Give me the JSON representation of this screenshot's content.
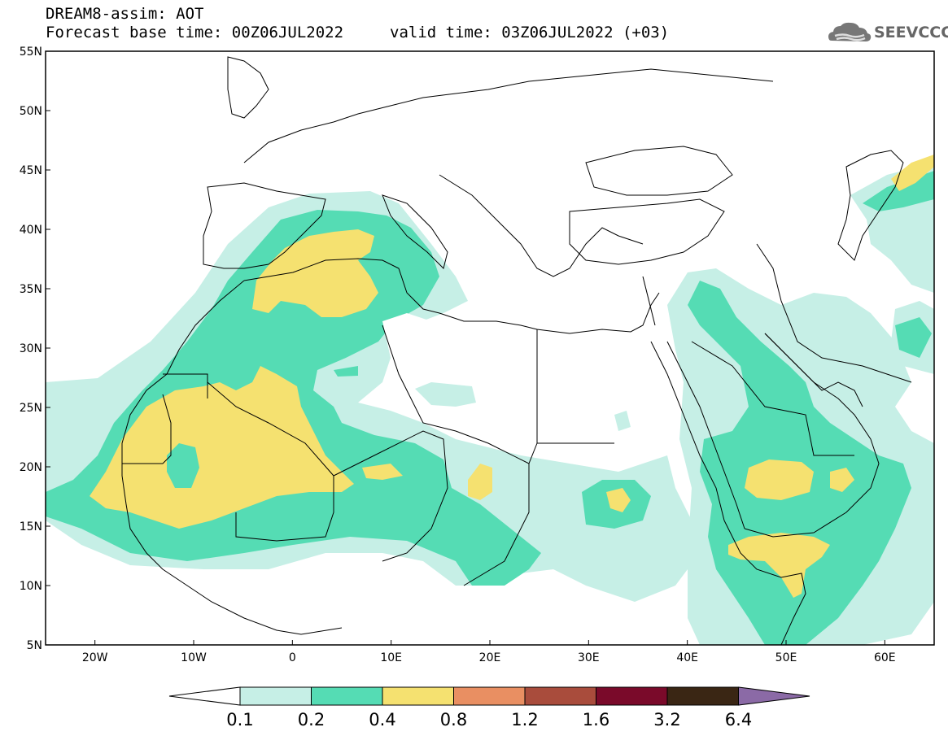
{
  "header": {
    "title": "DREAM8-assim: AOT",
    "base_time": "Forecast base time: 00Z06JUL2022",
    "valid_time": "valid time: 03Z06JUL2022 (+03)",
    "logo_text": "SEEVCCC"
  },
  "map": {
    "lat_labels": [
      "55N",
      "50N",
      "45N",
      "40N",
      "35N",
      "30N",
      "25N",
      "20N",
      "15N",
      "10N",
      "5N"
    ],
    "lon_labels": [
      "20W",
      "10W",
      "0",
      "10E",
      "20E",
      "30E",
      "40E",
      "50E",
      "60E"
    ],
    "lon_range": [
      -25,
      65
    ],
    "lat_range": [
      5,
      55
    ]
  },
  "colorbar": {
    "labels": [
      "0.1",
      "0.2",
      "0.4",
      "0.8",
      "1.2",
      "1.6",
      "3.2",
      "6.4"
    ],
    "colors": [
      "#ffffff",
      "#c6efe6",
      "#55dcb4",
      "#f5e170",
      "#e98f62",
      "#a94c3c",
      "#7a0a2a",
      "#3a2614",
      "#8b6aa6"
    ]
  },
  "colors": {
    "level1": "#c6efe6",
    "level2": "#55dcb4",
    "level3": "#f5e170",
    "border": "#000000"
  }
}
